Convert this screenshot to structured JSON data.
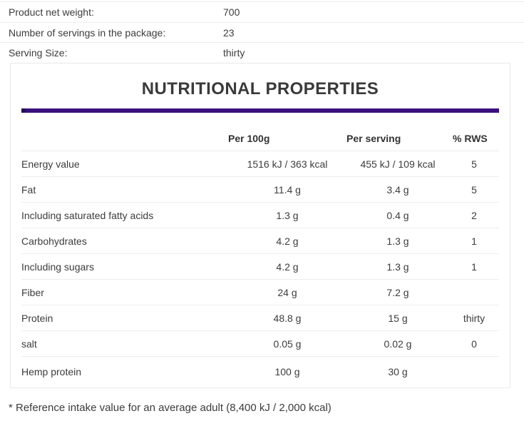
{
  "product_info": {
    "rows": [
      {
        "label": "Product net weight:",
        "value": "700"
      },
      {
        "label": "Number of servings in the package:",
        "value": "23"
      },
      {
        "label": "Serving Size:",
        "value": "thirty"
      }
    ]
  },
  "nutrition_panel": {
    "title": "NUTRITIONAL PROPERTIES",
    "accent_color": "#3a117c",
    "accent_cap_color": "#221058",
    "columns": [
      "Per 100g",
      "Per serving",
      "% RWS"
    ],
    "rows": [
      {
        "name": "Energy value",
        "per_100g": "1516 kJ / 363 kcal",
        "per_serving": "455 kJ / 109 kcal",
        "rws": "5"
      },
      {
        "name": "Fat",
        "per_100g": "11.4 g",
        "per_serving": "3.4 g",
        "rws": "5"
      },
      {
        "name": "Including saturated fatty acids",
        "per_100g": "1.3 g",
        "per_serving": "0.4 g",
        "rws": "2"
      },
      {
        "name": "Carbohydrates",
        "per_100g": "4.2 g",
        "per_serving": "1.3 g",
        "rws": "1"
      },
      {
        "name": "Including sugars",
        "per_100g": "4.2 g",
        "per_serving": "1.3 g",
        "rws": "1"
      },
      {
        "name": "Fiber",
        "per_100g": "24 g",
        "per_serving": "7.2 g",
        "rws": ""
      },
      {
        "name": "Protein",
        "per_100g": "48.8 g",
        "per_serving": "15 g",
        "rws": "thirty"
      },
      {
        "name": "salt",
        "per_100g": "0.05 g",
        "per_serving": "0.02 g",
        "rws": "0"
      },
      {
        "name": "Hemp protein",
        "per_100g": "100 g",
        "per_serving": "30 g",
        "rws": ""
      }
    ]
  },
  "footnote": "* Reference intake value for an average adult (8,400 kJ / 2,000 kcal)"
}
